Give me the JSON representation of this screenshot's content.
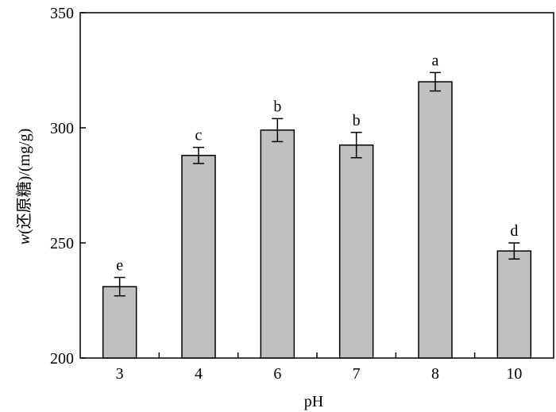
{
  "chart_data": {
    "type": "bar",
    "categories": [
      "3",
      "4",
      "6",
      "7",
      "8",
      "10"
    ],
    "values": [
      231,
      288,
      299,
      292.5,
      320,
      246.5
    ],
    "errors": [
      4,
      3.5,
      5,
      5.5,
      4,
      3.5
    ],
    "significance": [
      "e",
      "c",
      "b",
      "b",
      "a",
      "d"
    ],
    "xlabel": "pH",
    "ylabel_italic": "w",
    "ylabel_rest": "(还原糖)/(mg/g)",
    "ylim": [
      200,
      350
    ],
    "yticks": [
      200,
      250,
      300,
      350
    ],
    "grid": false,
    "bar_color": "#c0c0c0",
    "edge_color": "#000000"
  }
}
